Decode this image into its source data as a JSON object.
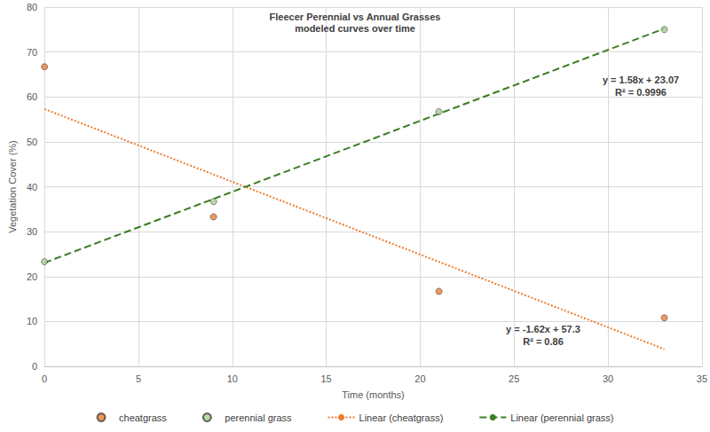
{
  "chart_data": {
    "type": "scatter",
    "title": "Fleecer Perennial vs Annual Grasses",
    "subtitle": "modeled curves over time",
    "x_label": "Time (months)",
    "y_label": "Vegetation Cover (%)",
    "xlim": [
      0,
      35
    ],
    "xticks": [
      0,
      5,
      10,
      15,
      20,
      25,
      30,
      35
    ],
    "ylim": [
      0,
      80
    ],
    "yticks": [
      0,
      10,
      20,
      30,
      40,
      50,
      60,
      70,
      80
    ],
    "grid": true,
    "legend": "bottom",
    "series": [
      {
        "name": "cheatgrass",
        "type": "scatter",
        "marker": "circle",
        "color": "#ed7d31",
        "x": [
          0,
          9,
          21,
          33
        ],
        "values": [
          66.7,
          33.3,
          16.7,
          10.8
        ]
      },
      {
        "name": "perennial grass",
        "type": "scatter",
        "marker": "circle",
        "color": "#a9d18e",
        "x": [
          0,
          9,
          21,
          33
        ],
        "values": [
          23.3,
          36.7,
          56.7,
          75.0
        ]
      },
      {
        "name": "Linear (cheatgrass)",
        "type": "line",
        "line_style": "dotted",
        "color": "#ed7d31",
        "x": [
          0,
          33
        ],
        "values": [
          57.3,
          3.84
        ]
      },
      {
        "name": "Linear (perennial grass)",
        "type": "line",
        "line_style": "dashed",
        "color": "#3b7d23",
        "x": [
          0,
          33
        ],
        "values": [
          23.07,
          75.21
        ]
      }
    ],
    "annotations": [
      "y = 1.58x + 23.07",
      "R² = 0.9996",
      "y = -1.62x + 57.3",
      "R² = 0.86"
    ]
  }
}
